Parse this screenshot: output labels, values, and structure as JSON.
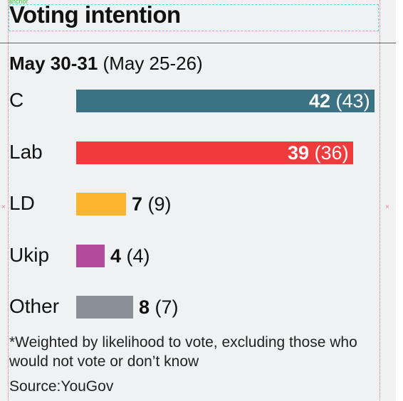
{
  "anchor_label": "anchor",
  "chart_data": {
    "type": "bar",
    "title": "Voting intention",
    "subtitle_current": "May 30-31",
    "subtitle_previous": "(May 25-26)",
    "categories": [
      "C",
      "Lab",
      "LD",
      "Ukip",
      "Other"
    ],
    "series": [
      {
        "name": "May 30-31",
        "values": [
          42,
          39,
          7,
          4,
          8
        ]
      },
      {
        "name": "May 25-26",
        "values": [
          43,
          36,
          9,
          4,
          7
        ]
      }
    ],
    "value_labels_current": [
      "42",
      "39",
      "7",
      "4",
      "8"
    ],
    "value_labels_previous": [
      "(43)",
      "(36)",
      "(9)",
      "(4)",
      "(7)"
    ],
    "colors": [
      "#3b7384",
      "#ef3b3b",
      "#fdb32e",
      "#b34b9b",
      "#8b9096"
    ],
    "xlim": [
      0,
      42
    ],
    "note": "*Weighted by likelihood to vote, excluding those who would not vote or don’t know",
    "source": "Source:YouGov"
  }
}
